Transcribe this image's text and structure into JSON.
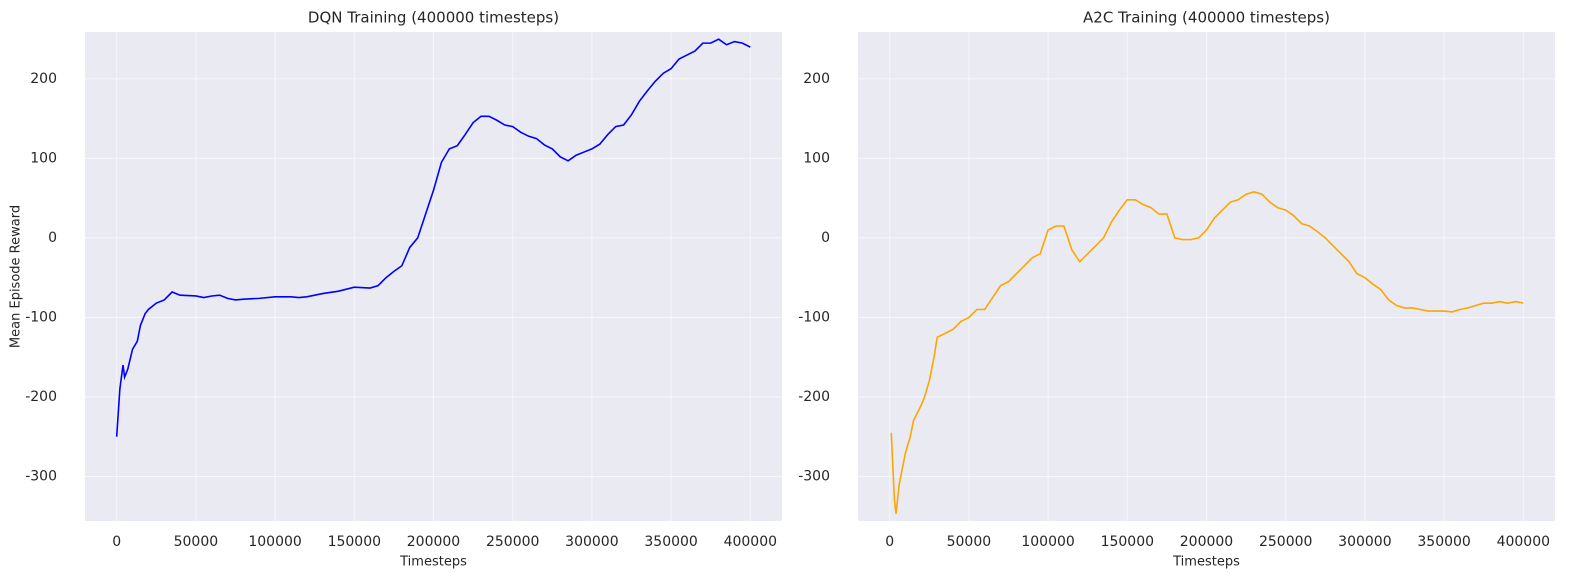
{
  "chart_data": [
    {
      "type": "line",
      "title": "DQN Training (400000 timesteps)",
      "xlabel": "Timesteps",
      "ylabel": "Mean Episode Reward",
      "color": "#0000ff",
      "x": [
        0,
        2000,
        4000,
        5000,
        7000,
        10000,
        13000,
        15000,
        18000,
        20000,
        25000,
        30000,
        35000,
        40000,
        50000,
        55000,
        60000,
        65000,
        70000,
        75000,
        80000,
        90000,
        100000,
        110000,
        115000,
        120000,
        130000,
        140000,
        150000,
        160000,
        165000,
        170000,
        175000,
        180000,
        185000,
        190000,
        195000,
        200000,
        205000,
        210000,
        215000,
        220000,
        225000,
        230000,
        235000,
        240000,
        245000,
        250000,
        255000,
        260000,
        265000,
        270000,
        275000,
        280000,
        285000,
        290000,
        295000,
        300000,
        305000,
        310000,
        315000,
        320000,
        325000,
        330000,
        335000,
        340000,
        345000,
        350000,
        355000,
        360000,
        365000,
        370000,
        375000,
        380000,
        385000,
        390000,
        395000,
        400000
      ],
      "values": [
        -250,
        -190,
        -160,
        -175,
        -165,
        -140,
        -130,
        -110,
        -95,
        -90,
        -82,
        -78,
        -68,
        -72,
        -73,
        -75,
        -73,
        -72,
        -76,
        -78,
        -77,
        -76,
        -74,
        -74,
        -75,
        -74,
        -70,
        -67,
        -62,
        -63,
        -60,
        -50,
        -42,
        -35,
        -12,
        0,
        30,
        60,
        95,
        112,
        116,
        130,
        145,
        153,
        153,
        148,
        142,
        140,
        133,
        128,
        125,
        117,
        112,
        102,
        97,
        104,
        108,
        112,
        118,
        130,
        140,
        142,
        155,
        172,
        185,
        197,
        207,
        213,
        225,
        230,
        235,
        245,
        245,
        250,
        243,
        247,
        245,
        240
      ],
      "xlim": [
        -20000,
        420000
      ],
      "ylim": [
        -356,
        259
      ],
      "xticks": [
        0,
        50000,
        100000,
        150000,
        200000,
        250000,
        300000,
        350000,
        400000
      ],
      "yticks": [
        -300,
        -200,
        -100,
        0,
        100,
        200
      ],
      "grid": true
    },
    {
      "type": "line",
      "title": "A2C Training (400000 timesteps)",
      "xlabel": "Timesteps",
      "color": "#ffa500",
      "x": [
        1000,
        3000,
        4000,
        6000,
        8000,
        10000,
        13000,
        15000,
        20000,
        22000,
        25000,
        28000,
        30000,
        35000,
        40000,
        45000,
        50000,
        55000,
        60000,
        65000,
        70000,
        75000,
        80000,
        85000,
        90000,
        95000,
        100000,
        105000,
        110000,
        115000,
        120000,
        125000,
        130000,
        135000,
        140000,
        145000,
        150000,
        155000,
        160000,
        165000,
        170000,
        175000,
        180000,
        185000,
        190000,
        195000,
        200000,
        205000,
        210000,
        215000,
        220000,
        225000,
        230000,
        235000,
        240000,
        245000,
        250000,
        255000,
        260000,
        265000,
        270000,
        275000,
        280000,
        285000,
        290000,
        295000,
        300000,
        305000,
        310000,
        315000,
        320000,
        325000,
        330000,
        335000,
        340000,
        345000,
        350000,
        355000,
        360000,
        365000,
        370000,
        375000,
        380000,
        385000,
        390000,
        395000,
        400000
      ],
      "values": [
        -245,
        -330,
        -347,
        -310,
        -290,
        -270,
        -250,
        -230,
        -210,
        -200,
        -180,
        -150,
        -125,
        -120,
        -115,
        -105,
        -100,
        -90,
        -90,
        -75,
        -60,
        -55,
        -45,
        -35,
        -25,
        -20,
        10,
        15,
        15,
        -15,
        -30,
        -20,
        -10,
        0,
        20,
        35,
        48,
        48,
        42,
        38,
        30,
        30,
        0,
        -2,
        -2,
        0,
        10,
        25,
        35,
        45,
        48,
        55,
        58,
        55,
        45,
        38,
        35,
        28,
        18,
        15,
        8,
        0,
        -10,
        -20,
        -30,
        -45,
        -50,
        -58,
        -65,
        -78,
        -85,
        -88,
        -88,
        -90,
        -92,
        -92,
        -92,
        -93,
        -90,
        -88,
        -85,
        -82,
        -82,
        -80,
        -82,
        -80,
        -82
      ],
      "xlim": [
        -20000,
        420000
      ],
      "ylim": [
        -356,
        259
      ],
      "xticks": [
        0,
        50000,
        100000,
        150000,
        200000,
        250000,
        300000,
        350000,
        400000
      ],
      "yticks": [
        -300,
        -200,
        -100,
        0,
        100,
        200
      ],
      "grid": true
    }
  ]
}
